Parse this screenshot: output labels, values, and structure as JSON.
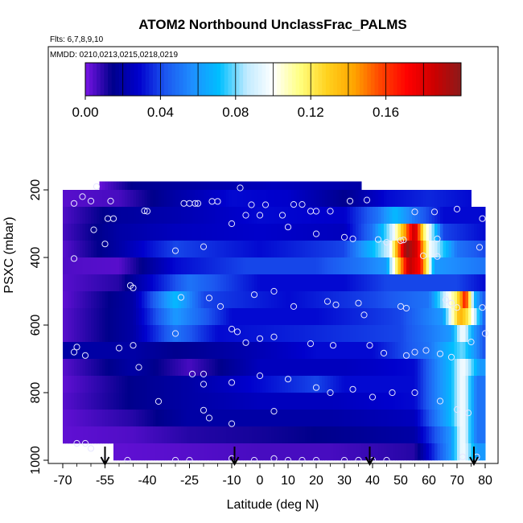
{
  "chart_data": {
    "type": "heatmap",
    "title": "ATOM2 Northbound UnclassFrac_PALMS",
    "flights_label": "Flts: 6,7,8,9,10",
    "dates_label": "MMDD: 0210,0213,0215,0218,0219",
    "xlabel": "Latitude (deg N)",
    "ylabel": "PSXC (mbar)",
    "xlim": [
      -70,
      80
    ],
    "ylim": [
      1000,
      200
    ],
    "x_ticks": [
      -70,
      -55,
      -40,
      -25,
      -10,
      0,
      10,
      20,
      30,
      40,
      50,
      60,
      70,
      80
    ],
    "y_ticks": [
      200,
      400,
      600,
      800,
      1000
    ],
    "colorbar": {
      "range": [
        0,
        0.2
      ],
      "ticks": [
        "0.00",
        "0.04",
        "0.08",
        "0.12",
        "0.16"
      ],
      "tick_values": [
        0,
        0.04,
        0.08,
        0.12,
        0.16
      ],
      "colors": [
        "#7a14e6",
        "#00008b",
        "#0000cd",
        "#1c57f0",
        "#1e90ff",
        "#00bfff",
        "#bfeaff",
        "#ffffff",
        "#ffff80",
        "#ffd21e",
        "#ffa500",
        "#ff4500",
        "#ff0000",
        "#cc0000",
        "#8b1a1a"
      ]
    },
    "profile_markers_lat": [
      -55,
      -9,
      39,
      76
    ],
    "bands": [
      {
        "p": 200,
        "from": -57,
        "to": 36,
        "cells": [
          [
            -57,
            0.002
          ],
          [
            -45,
            0.015
          ],
          [
            -20,
            0.02
          ],
          [
            5,
            0.025
          ],
          [
            25,
            0.022
          ],
          [
            36,
            0.02
          ]
        ]
      },
      {
        "p": 225,
        "from": -70,
        "to": 75,
        "cells": [
          [
            -70,
            0.004
          ],
          [
            -50,
            0.006
          ],
          [
            -30,
            0.02
          ],
          [
            -10,
            0.03
          ],
          [
            10,
            0.028
          ],
          [
            30,
            0.015
          ],
          [
            45,
            0.03
          ],
          [
            60,
            0.035
          ],
          [
            75,
            0.03
          ]
        ]
      },
      {
        "p": 275,
        "from": -70,
        "to": 80,
        "cells": [
          [
            -70,
            0.005
          ],
          [
            -50,
            0.018
          ],
          [
            -30,
            0.022
          ],
          [
            0,
            0.03
          ],
          [
            30,
            0.028
          ],
          [
            42,
            0.05
          ],
          [
            48,
            0.07
          ],
          [
            55,
            0.05
          ],
          [
            65,
            0.03
          ],
          [
            80,
            0.03
          ]
        ]
      },
      {
        "p": 325,
        "from": -70,
        "to": 80,
        "cells": [
          [
            -70,
            0.006
          ],
          [
            -50,
            0.02
          ],
          [
            -30,
            0.025
          ],
          [
            0,
            0.028
          ],
          [
            30,
            0.025
          ],
          [
            40,
            0.05
          ],
          [
            47,
            0.09
          ],
          [
            52,
            0.15
          ],
          [
            55,
            0.19
          ],
          [
            58,
            0.12
          ],
          [
            65,
            0.04
          ],
          [
            80,
            0.03
          ]
        ]
      },
      {
        "p": 375,
        "from": -70,
        "to": 80,
        "cells": [
          [
            -70,
            0.004
          ],
          [
            -50,
            0.02
          ],
          [
            -30,
            0.04
          ],
          [
            0,
            0.03
          ],
          [
            30,
            0.04
          ],
          [
            40,
            0.07
          ],
          [
            46,
            0.09
          ],
          [
            52,
            0.2
          ],
          [
            56,
            0.18
          ],
          [
            60,
            0.1
          ],
          [
            70,
            0.05
          ],
          [
            80,
            0.04
          ]
        ]
      },
      {
        "p": 425,
        "from": -70,
        "to": 80,
        "cells": [
          [
            -70,
            0.005
          ],
          [
            -50,
            0.004
          ],
          [
            -30,
            0.03
          ],
          [
            -5,
            0.04
          ],
          [
            20,
            0.04
          ],
          [
            35,
            0.05
          ],
          [
            45,
            0.06
          ],
          [
            53,
            0.19
          ],
          [
            57,
            0.17
          ],
          [
            62,
            0.06
          ],
          [
            80,
            0.05
          ]
        ]
      },
      {
        "p": 475,
        "from": -70,
        "to": 80,
        "cells": [
          [
            -70,
            0.004
          ],
          [
            -50,
            0.01
          ],
          [
            -25,
            0.05
          ],
          [
            0,
            0.03
          ],
          [
            30,
            0.03
          ],
          [
            45,
            0.04
          ],
          [
            55,
            0.04
          ],
          [
            70,
            0.04
          ],
          [
            80,
            0.03
          ]
        ]
      },
      {
        "p": 525,
        "from": -70,
        "to": 80,
        "cells": [
          [
            -70,
            0.003
          ],
          [
            -45,
            0.02
          ],
          [
            -30,
            0.07
          ],
          [
            -20,
            0.04
          ],
          [
            10,
            0.03
          ],
          [
            40,
            0.04
          ],
          [
            60,
            0.05
          ],
          [
            70,
            0.12
          ],
          [
            73,
            0.17
          ],
          [
            76,
            0.07
          ],
          [
            80,
            0.04
          ]
        ]
      },
      {
        "p": 575,
        "from": -70,
        "to": 80,
        "cells": [
          [
            -70,
            0.004
          ],
          [
            -45,
            0.02
          ],
          [
            -30,
            0.06
          ],
          [
            -10,
            0.03
          ],
          [
            20,
            0.03
          ],
          [
            50,
            0.04
          ],
          [
            65,
            0.06
          ],
          [
            71,
            0.14
          ],
          [
            74,
            0.12
          ],
          [
            80,
            0.04
          ]
        ]
      },
      {
        "p": 625,
        "from": -70,
        "to": 80,
        "cells": [
          [
            -70,
            0.004
          ],
          [
            -45,
            0.02
          ],
          [
            -30,
            0.05
          ],
          [
            -15,
            0.03
          ],
          [
            20,
            0.035
          ],
          [
            50,
            0.04
          ],
          [
            68,
            0.06
          ],
          [
            72,
            0.1
          ],
          [
            76,
            0.06
          ],
          [
            80,
            0.04
          ]
        ]
      },
      {
        "p": 675,
        "from": -70,
        "to": 80,
        "cells": [
          [
            -70,
            0.02
          ],
          [
            -45,
            0.02
          ],
          [
            -30,
            0.015
          ],
          [
            -10,
            0.02
          ],
          [
            20,
            0.03
          ],
          [
            40,
            0.03
          ],
          [
            60,
            0.05
          ],
          [
            72,
            0.08
          ],
          [
            80,
            0.04
          ]
        ]
      },
      {
        "p": 725,
        "from": -70,
        "to": 80,
        "cells": [
          [
            -70,
            0.004
          ],
          [
            -45,
            0.02
          ],
          [
            -25,
            0.006
          ],
          [
            0,
            0.025
          ],
          [
            30,
            0.025
          ],
          [
            55,
            0.03
          ],
          [
            68,
            0.07
          ],
          [
            72,
            0.1
          ],
          [
            78,
            0.06
          ]
        ]
      },
      {
        "p": 775,
        "from": -70,
        "to": 80,
        "cells": [
          [
            -70,
            0.003
          ],
          [
            -45,
            0.015
          ],
          [
            -25,
            0.02
          ],
          [
            0,
            0.03
          ],
          [
            20,
            0.04
          ],
          [
            30,
            0.03
          ],
          [
            55,
            0.03
          ],
          [
            68,
            0.07
          ],
          [
            72,
            0.1
          ],
          [
            77,
            0.05
          ]
        ]
      },
      {
        "p": 825,
        "from": -70,
        "to": 80,
        "cells": [
          [
            -70,
            0.004
          ],
          [
            -45,
            0.015
          ],
          [
            -25,
            0.02
          ],
          [
            0,
            0.025
          ],
          [
            25,
            0.025
          ],
          [
            55,
            0.03
          ],
          [
            68,
            0.07
          ],
          [
            72,
            0.1
          ],
          [
            77,
            0.05
          ]
        ]
      },
      {
        "p": 875,
        "from": -70,
        "to": 80,
        "cells": [
          [
            -70,
            0.003
          ],
          [
            -45,
            0.01
          ],
          [
            -25,
            0.02
          ],
          [
            0,
            0.02
          ],
          [
            25,
            0.02
          ],
          [
            55,
            0.025
          ],
          [
            68,
            0.07
          ],
          [
            72,
            0.1
          ],
          [
            77,
            0.05
          ]
        ]
      },
      {
        "p": 925,
        "from": -70,
        "to": 80,
        "cells": [
          [
            -70,
            0.003
          ],
          [
            -45,
            0.005
          ],
          [
            -25,
            0.01
          ],
          [
            0,
            0.012
          ],
          [
            25,
            0.015
          ],
          [
            55,
            0.02
          ],
          [
            68,
            0.06
          ],
          [
            72,
            0.1
          ],
          [
            77,
            0.05
          ]
        ]
      },
      {
        "p": 975,
        "from": -52,
        "to": 80,
        "cells": [
          [
            -52,
            0.003
          ],
          [
            -30,
            0.004
          ],
          [
            0,
            0.006
          ],
          [
            25,
            0.006
          ],
          [
            55,
            0.01
          ],
          [
            68,
            0.06
          ],
          [
            72,
            0.1
          ],
          [
            77,
            0.06
          ]
        ]
      }
    ],
    "points": [
      [
        -58,
        190
      ],
      [
        -63,
        220
      ],
      [
        -60,
        233
      ],
      [
        -66,
        240
      ],
      [
        -53,
        233
      ],
      [
        -41,
        262
      ],
      [
        -40,
        263
      ],
      [
        -27,
        240
      ],
      [
        -25,
        240
      ],
      [
        -23,
        240
      ],
      [
        -22,
        240
      ],
      [
        -17,
        234
      ],
      [
        -15,
        234
      ],
      [
        -7,
        194
      ],
      [
        -3,
        244
      ],
      [
        2,
        244
      ],
      [
        -5,
        275
      ],
      [
        0,
        275
      ],
      [
        8,
        275
      ],
      [
        12,
        243
      ],
      [
        15,
        243
      ],
      [
        18,
        263
      ],
      [
        20,
        263
      ],
      [
        25,
        263
      ],
      [
        32,
        233
      ],
      [
        38,
        230
      ],
      [
        55,
        265
      ],
      [
        62,
        265
      ],
      [
        70,
        257
      ],
      [
        -54,
        285
      ],
      [
        -52,
        285
      ],
      [
        -59,
        318
      ],
      [
        -55,
        360
      ],
      [
        -30,
        380
      ],
      [
        -20,
        368
      ],
      [
        -10,
        300
      ],
      [
        10,
        310
      ],
      [
        20,
        330
      ],
      [
        30,
        340
      ],
      [
        33,
        345
      ],
      [
        42,
        347
      ],
      [
        45,
        355
      ],
      [
        50,
        350
      ],
      [
        51,
        348
      ],
      [
        63,
        345
      ],
      [
        58,
        395
      ],
      [
        63,
        397
      ],
      [
        78,
        370
      ],
      [
        79,
        285
      ],
      [
        -66,
        403
      ],
      [
        -46,
        483
      ],
      [
        -45,
        490
      ],
      [
        -28,
        518
      ],
      [
        -18,
        520
      ],
      [
        -14,
        545
      ],
      [
        -2,
        510
      ],
      [
        5,
        500
      ],
      [
        12,
        545
      ],
      [
        24,
        530
      ],
      [
        27,
        540
      ],
      [
        35,
        535
      ],
      [
        37,
        570
      ],
      [
        50,
        545
      ],
      [
        52,
        550
      ],
      [
        66,
        525
      ],
      [
        68,
        535
      ],
      [
        70,
        548
      ],
      [
        79,
        548
      ],
      [
        80,
        625
      ],
      [
        -30,
        625
      ],
      [
        -10,
        612
      ],
      [
        -8,
        620
      ],
      [
        -5,
        652
      ],
      [
        0,
        640
      ],
      [
        5,
        635
      ],
      [
        18,
        655
      ],
      [
        26,
        660
      ],
      [
        39,
        660
      ],
      [
        44,
        683
      ],
      [
        52,
        690
      ],
      [
        59,
        675
      ],
      [
        55,
        680
      ],
      [
        64,
        685
      ],
      [
        68,
        695
      ],
      [
        75,
        650
      ],
      [
        -66,
        680
      ],
      [
        -65,
        665
      ],
      [
        -62,
        690
      ],
      [
        -50,
        668
      ],
      [
        -45,
        660
      ],
      [
        -24,
        745
      ],
      [
        -20,
        775
      ],
      [
        -10,
        770
      ],
      [
        0,
        750
      ],
      [
        10,
        760
      ],
      [
        20,
        785
      ],
      [
        25,
        800
      ],
      [
        33,
        790
      ],
      [
        40,
        813
      ],
      [
        47,
        800
      ],
      [
        55,
        800
      ],
      [
        64,
        825
      ],
      [
        70,
        850
      ],
      [
        74,
        860
      ],
      [
        -43,
        725
      ],
      [
        -20,
        745
      ],
      [
        -36,
        826
      ],
      [
        -20,
        852
      ],
      [
        -18,
        875
      ],
      [
        -10,
        892
      ],
      [
        5,
        855
      ],
      [
        -65,
        950
      ],
      [
        -62,
        950
      ],
      [
        -60,
        965
      ],
      [
        -55,
        1000
      ],
      [
        -47,
        1000
      ],
      [
        -30,
        1000
      ],
      [
        -25,
        1000
      ],
      [
        -10,
        995
      ],
      [
        -2,
        1000
      ],
      [
        5,
        995
      ],
      [
        10,
        1000
      ],
      [
        15,
        1000
      ],
      [
        20,
        1000
      ],
      [
        30,
        1000
      ],
      [
        35,
        1000
      ],
      [
        40,
        1000
      ],
      [
        45,
        1000
      ],
      [
        72,
        990
      ],
      [
        77,
        990
      ]
    ]
  }
}
